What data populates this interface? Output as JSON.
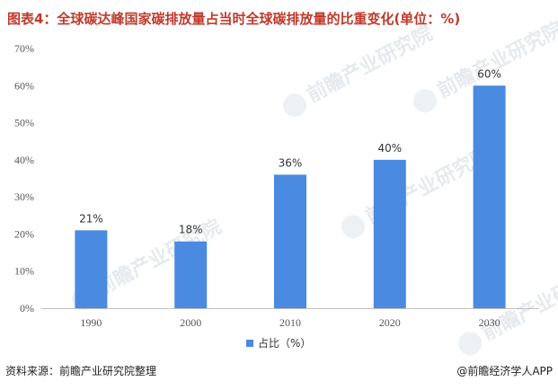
{
  "header": {
    "title": "图表4：全球碳达峰国家碳排放量占当时全球碳排放量的比重变化(单位：%)"
  },
  "watermark": {
    "text": "前瞻产业研究院"
  },
  "footer": {
    "source": "资料来源：前瞻产业研究院整理",
    "brand": "@前瞻经济学人APP"
  },
  "colors": {
    "bar": "#4a8ae0",
    "title": "#c0392b"
  },
  "chart_data": {
    "type": "bar",
    "categories": [
      "1990",
      "2000",
      "2010",
      "2020",
      "2030"
    ],
    "series": [
      {
        "name": "占比（%）",
        "values": [
          21,
          18,
          36,
          40,
          60
        ]
      }
    ],
    "data_labels": [
      "21%",
      "18%",
      "36%",
      "40%",
      "60%"
    ],
    "yticks": [
      "0%",
      "10%",
      "20%",
      "30%",
      "40%",
      "50%",
      "60%",
      "70%"
    ],
    "ylim": [
      0,
      70
    ],
    "title": "图表4：全球碳达峰国家碳排放量占当时全球碳排放量的比重变化(单位：%)",
    "xlabel": "",
    "ylabel": "",
    "grid": false,
    "legend": "bottom-center"
  }
}
